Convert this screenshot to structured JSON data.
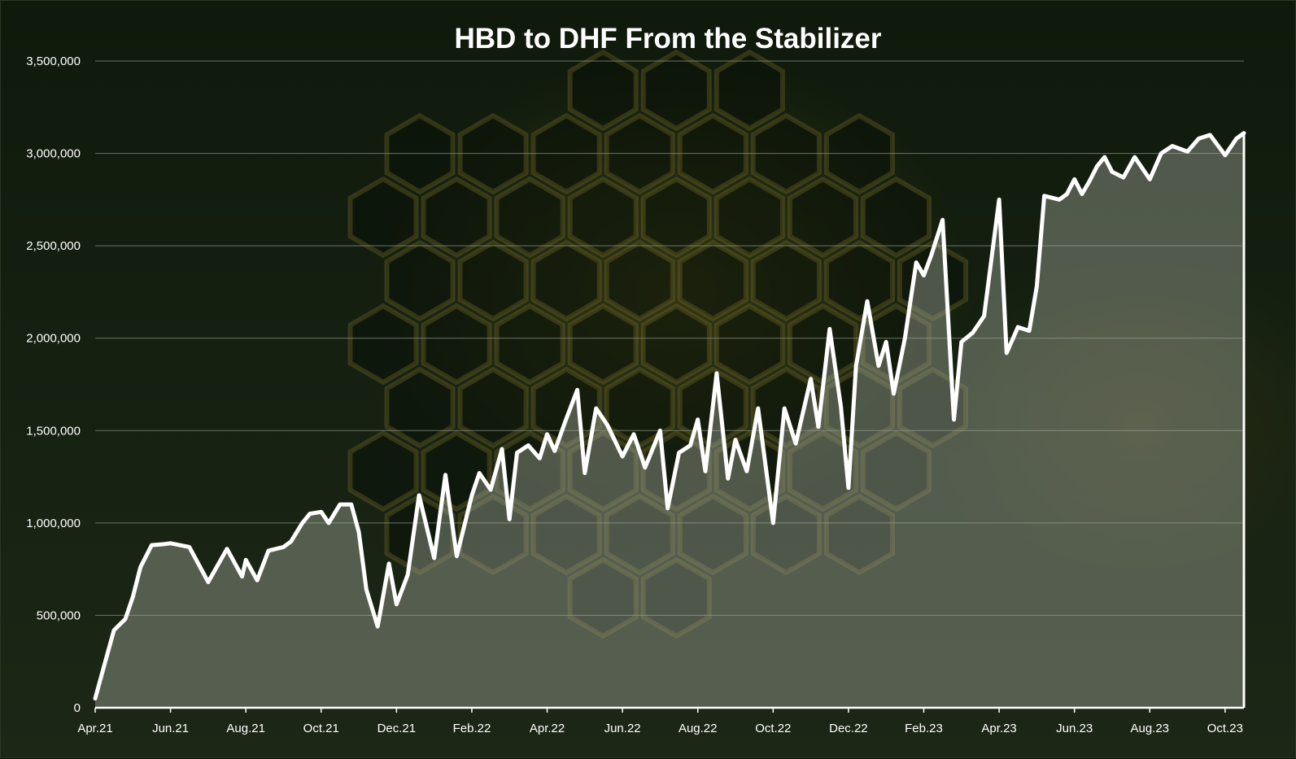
{
  "chart_data": {
    "type": "area",
    "title": "HBD to DHF From the Stabilizer",
    "xlabel": "",
    "ylabel": "",
    "ylim": [
      0,
      3500000
    ],
    "y_ticks": [
      0,
      500000,
      1000000,
      1500000,
      2000000,
      2500000,
      3000000,
      3500000
    ],
    "y_tick_labels": [
      "0",
      "500,000",
      "1,000,000",
      "1,500,000",
      "2,000,000",
      "2,500,000",
      "3,000,000",
      "3,500,000"
    ],
    "x_tick_labels": [
      "Apr.21",
      "Jun.21",
      "Aug.21",
      "Oct.21",
      "Dec.21",
      "Feb.22",
      "Apr.22",
      "Jun.22",
      "Aug.22",
      "Oct.22",
      "Dec.22",
      "Feb.23",
      "Apr.23",
      "Jun.23",
      "Aug.23",
      "Oct.23"
    ],
    "x_range_months": [
      0,
      30.5
    ],
    "grid": true,
    "legend": "none",
    "colors": {
      "line": "#ffffff",
      "area": "#a8aea0",
      "grid": "#8a9183"
    },
    "series": [
      {
        "x": [
          0,
          0.2,
          0.5,
          0.8,
          1.0,
          1.2,
          1.5,
          1.8,
          2.0,
          2.5,
          3.0,
          3.5,
          3.9,
          4.0,
          4.3,
          4.6,
          5.0,
          5.2,
          5.5,
          5.7,
          6.0,
          6.2,
          6.5,
          6.8,
          7.0,
          7.2,
          7.5,
          7.8,
          8.0,
          8.3,
          8.6,
          9.0,
          9.3,
          9.6,
          10.0,
          10.2,
          10.5,
          10.8,
          11.0,
          11.2,
          11.5,
          11.8,
          12.0,
          12.2,
          12.5,
          12.8,
          13.0,
          13.3,
          13.6,
          14.0,
          14.3,
          14.6,
          15.0,
          15.2,
          15.5,
          15.8,
          16.0,
          16.2,
          16.5,
          16.8,
          17.0,
          17.3,
          17.6,
          18.0,
          18.3,
          18.6,
          19.0,
          19.2,
          19.5,
          19.8,
          20.0,
          20.2,
          20.5,
          20.8,
          21.0,
          21.2,
          21.5,
          21.8,
          22.0,
          22.2,
          22.5,
          22.8,
          23.0,
          23.3,
          23.6,
          24.0,
          24.2,
          24.5,
          24.8,
          25.0,
          25.2,
          25.4,
          25.6,
          25.8,
          26.0,
          26.2,
          26.4,
          26.6,
          26.8,
          27.0,
          27.3,
          27.6,
          28.0,
          28.3,
          28.6,
          29.0,
          29.3,
          29.6,
          30.0,
          30.3,
          30.5
        ],
        "values": [
          50000,
          200000,
          420000,
          480000,
          600000,
          760000,
          880000,
          885000,
          890000,
          870000,
          680000,
          860000,
          710000,
          800000,
          690000,
          850000,
          870000,
          900000,
          1000000,
          1050000,
          1060000,
          1000000,
          1100000,
          1100000,
          950000,
          640000,
          440000,
          780000,
          560000,
          720000,
          1150000,
          810000,
          1260000,
          820000,
          1150000,
          1270000,
          1180000,
          1400000,
          1020000,
          1380000,
          1420000,
          1350000,
          1480000,
          1390000,
          1560000,
          1720000,
          1270000,
          1620000,
          1530000,
          1360000,
          1480000,
          1300000,
          1500000,
          1080000,
          1380000,
          1420000,
          1560000,
          1280000,
          1810000,
          1240000,
          1450000,
          1280000,
          1620000,
          1000000,
          1620000,
          1430000,
          1780000,
          1520000,
          2050000,
          1630000,
          1190000,
          1850000,
          2200000,
          1850000,
          1980000,
          1700000,
          2000000,
          2410000,
          2340000,
          2450000,
          2640000,
          1560000,
          1980000,
          2030000,
          2120000,
          2750000,
          1920000,
          2060000,
          2040000,
          2280000,
          2770000,
          2760000,
          2750000,
          2780000,
          2860000,
          2780000,
          2850000,
          2930000,
          2980000,
          2900000,
          2870000,
          2980000,
          2860000,
          3000000,
          3040000,
          3010000,
          3080000,
          3100000,
          2990000,
          3080000,
          3110000
        ]
      }
    ]
  }
}
